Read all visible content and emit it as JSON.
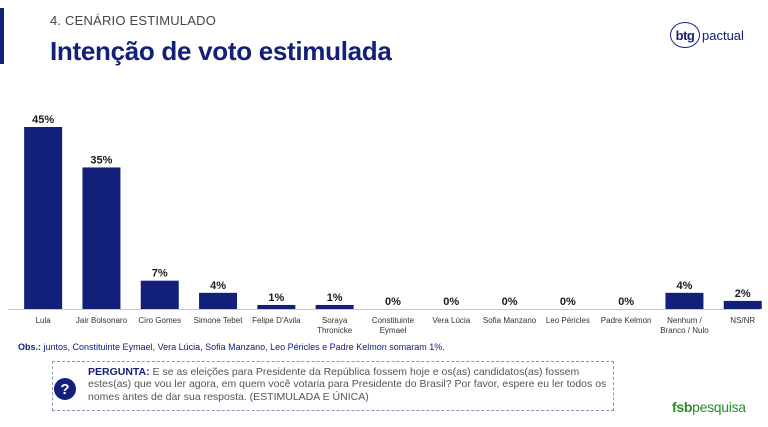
{
  "header": {
    "section_label": "4. CENÁRIO ESTIMULADO",
    "title": "Intenção de voto estimulada"
  },
  "logo": {
    "mark": "btg",
    "text": "pactual"
  },
  "chart_data": {
    "type": "bar",
    "categories": [
      "Lula",
      "Jair Bolsonaro",
      "Ciro Gomes",
      "Simone Tebet",
      "Felipe D'Avila",
      "Soraya Thronicke",
      "Constituinte Eymael",
      "Vera Lúcia",
      "Sofia Manzano",
      "Leo Péricles",
      "Padre Kelmon",
      "Nenhum / Branco / Nulo",
      "NS/NR"
    ],
    "category_lines": [
      [
        "Lula"
      ],
      [
        "Jair Bolsonaro"
      ],
      [
        "Ciro Gomes"
      ],
      [
        "Simone Tebet"
      ],
      [
        "Felipe D'Avila"
      ],
      [
        "Soraya",
        "Thronicke"
      ],
      [
        "Constituinte",
        "Eymael"
      ],
      [
        "Vera Lúcia"
      ],
      [
        "Sofia Manzano"
      ],
      [
        "Leo Péricles"
      ],
      [
        "Padre Kelmon"
      ],
      [
        "Nenhum /",
        "Branco / Nulo"
      ],
      [
        "NS/NR"
      ]
    ],
    "values": [
      45,
      35,
      7,
      4,
      1,
      1,
      0,
      0,
      0,
      0,
      0,
      4,
      2
    ],
    "data_labels": [
      "45%",
      "35%",
      "7%",
      "4%",
      "1%",
      "1%",
      "0%",
      "0%",
      "0%",
      "0%",
      "0%",
      "4%",
      "2%"
    ],
    "unit": "%",
    "title": "",
    "xlabel": "",
    "ylabel": "",
    "ylim": [
      0,
      45
    ],
    "grid": false,
    "bar_color": "#12207a"
  },
  "obs": {
    "label": "Obs.:",
    "text": " juntos, Constituinte Eymael, Vera Lúcia, Sofia Manzano, Leo Péricles e Padre Kelmon somaram 1%."
  },
  "question": {
    "label": "PERGUNTA:",
    "text": " E se as eleições para Presidente da República fossem hoje e os(as) candidatos(as) fossem estes(as) que vou ler agora, em quem você votaria para Presidente do Brasil? Por favor, espere eu ler todos os nomes antes de dar sua resposta. (ESTIMULADA E ÚNICA)",
    "icon_glyph": "?"
  },
  "footer": {
    "brand_bold": "fsb",
    "brand_light": "pesquisa"
  }
}
